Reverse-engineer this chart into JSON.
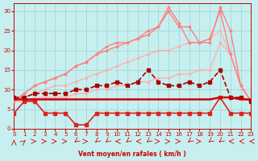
{
  "bg_color": "#c8efef",
  "grid_color": "#a0d8d8",
  "xlabel": "Vent moyen/en rafales ( km/h )",
  "xlim": [
    0,
    23
  ],
  "ylim": [
    0,
    32
  ],
  "yticks": [
    0,
    5,
    10,
    15,
    20,
    25,
    30
  ],
  "xticks": [
    0,
    1,
    2,
    3,
    4,
    5,
    6,
    7,
    8,
    9,
    10,
    11,
    12,
    13,
    14,
    15,
    16,
    17,
    18,
    19,
    20,
    21,
    22,
    23
  ],
  "series": [
    {
      "x": [
        0,
        1,
        2,
        3,
        4,
        5,
        6,
        7,
        8,
        9,
        10,
        11,
        12,
        13,
        14,
        15,
        16,
        17,
        18,
        19,
        20,
        21,
        22,
        23
      ],
      "y": [
        7.5,
        7.5,
        7.5,
        7.5,
        7.5,
        7.5,
        7.5,
        7.5,
        7.5,
        7.5,
        7.5,
        7.5,
        7.5,
        7.5,
        7.5,
        7.5,
        7.5,
        7.5,
        7.5,
        7.5,
        8,
        8,
        7.5,
        7.5
      ],
      "color": "#cc0000",
      "linewidth": 1.8,
      "marker": null,
      "markersize": 0,
      "zorder": 6,
      "linestyle": "-"
    },
    {
      "x": [
        0,
        1,
        2,
        3,
        4,
        5,
        6,
        7,
        8,
        9,
        10,
        11,
        12,
        13,
        14,
        15,
        16,
        17,
        18,
        19,
        20,
        21,
        22,
        23
      ],
      "y": [
        4,
        7,
        7,
        4,
        4,
        4,
        1,
        1,
        4,
        4,
        4,
        4,
        4,
        4,
        4,
        4,
        4,
        4,
        4,
        4,
        8,
        4,
        4,
        4
      ],
      "color": "#dd2222",
      "linewidth": 1.2,
      "marker": "s",
      "markersize": 2.5,
      "zorder": 5,
      "linestyle": "-"
    },
    {
      "x": [
        0,
        1,
        2,
        3,
        4,
        5,
        6,
        7,
        8,
        9,
        10,
        11,
        12,
        13,
        14,
        15,
        16,
        17,
        18,
        19,
        20,
        21,
        22,
        23
      ],
      "y": [
        8,
        8,
        9,
        9,
        9,
        9,
        10,
        10,
        11,
        11,
        12,
        11,
        12,
        15,
        12,
        11,
        11,
        12,
        11,
        12,
        15,
        8,
        8,
        7
      ],
      "color": "#aa0000",
      "linewidth": 1.2,
      "marker": "s",
      "markersize": 2.5,
      "zorder": 5,
      "linestyle": "--"
    },
    {
      "x": [
        0,
        1,
        2,
        3,
        4,
        5,
        6,
        7,
        8,
        9,
        10,
        11,
        12,
        13,
        14,
        15,
        16,
        17,
        18,
        19,
        20,
        21,
        22,
        23
      ],
      "y": [
        7,
        7,
        8,
        8,
        8,
        8,
        9,
        9,
        10,
        10,
        11,
        11,
        12,
        12,
        13,
        13,
        14,
        14,
        15,
        15,
        22,
        19,
        11,
        7
      ],
      "color": "#ffb0b0",
      "linewidth": 1.0,
      "marker": "s",
      "markersize": 2,
      "zorder": 2,
      "linestyle": "-"
    },
    {
      "x": [
        0,
        1,
        2,
        3,
        4,
        5,
        6,
        7,
        8,
        9,
        10,
        11,
        12,
        13,
        14,
        15,
        16,
        17,
        18,
        19,
        20,
        21,
        22,
        23
      ],
      "y": [
        7,
        8,
        9,
        10,
        11,
        11,
        12,
        13,
        14,
        15,
        16,
        17,
        18,
        19,
        20,
        20,
        21,
        22,
        22,
        23,
        25,
        19,
        11,
        7
      ],
      "color": "#ffb0b0",
      "linewidth": 1.0,
      "marker": "s",
      "markersize": 2,
      "zorder": 2,
      "linestyle": "-"
    },
    {
      "x": [
        0,
        1,
        2,
        3,
        4,
        5,
        6,
        7,
        8,
        9,
        10,
        11,
        12,
        13,
        14,
        15,
        16,
        17,
        18,
        19,
        20,
        21,
        22,
        23
      ],
      "y": [
        7,
        9,
        11,
        12,
        13,
        14,
        16,
        17,
        19,
        21,
        22,
        22,
        23,
        25,
        26,
        30,
        26,
        26,
        22,
        23,
        30,
        19,
        11,
        7
      ],
      "color": "#ff8080",
      "linewidth": 1.0,
      "marker": "s",
      "markersize": 2,
      "zorder": 3,
      "linestyle": "-"
    },
    {
      "x": [
        0,
        1,
        2,
        3,
        4,
        5,
        6,
        7,
        8,
        9,
        10,
        11,
        12,
        13,
        14,
        15,
        16,
        17,
        18,
        19,
        20,
        21,
        22,
        23
      ],
      "y": [
        7,
        9,
        11,
        12,
        13,
        14,
        16,
        17,
        19,
        20,
        21,
        22,
        23,
        24,
        26,
        31,
        27,
        22,
        22,
        22,
        31,
        25,
        11,
        7
      ],
      "color": "#ff8080",
      "linewidth": 1.0,
      "marker": "s",
      "markersize": 2,
      "zorder": 3,
      "linestyle": "-"
    }
  ],
  "wind_arrow_angles": [
    180,
    135,
    90,
    90,
    90,
    90,
    315,
    90,
    315,
    315,
    270,
    315,
    270,
    315,
    90,
    90,
    90,
    315,
    90,
    315,
    315,
    270,
    270,
    270
  ]
}
